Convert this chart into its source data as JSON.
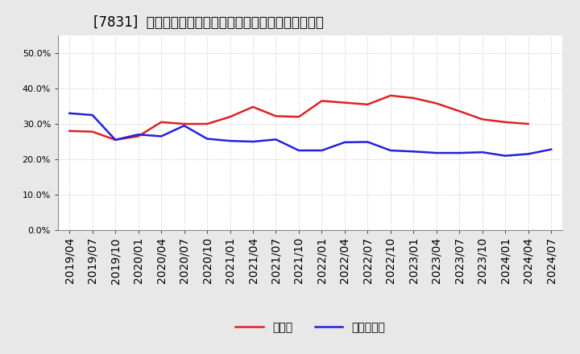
{
  "title": "[7831]  現顔金、有利子負債の総資産に対する比率の推移",
  "x_labels": [
    "2019/04",
    "2019/07",
    "2019/10",
    "2020/01",
    "2020/04",
    "2020/07",
    "2020/10",
    "2021/01",
    "2021/04",
    "2021/07",
    "2021/10",
    "2022/01",
    "2022/04",
    "2022/07",
    "2022/10",
    "2023/01",
    "2023/04",
    "2023/07",
    "2023/10",
    "2024/01",
    "2024/04",
    "2024/07"
  ],
  "genkin": [
    0.28,
    0.278,
    0.255,
    0.265,
    0.305,
    0.3,
    0.3,
    0.32,
    0.348,
    0.322,
    0.32,
    0.365,
    0.36,
    0.355,
    0.38,
    0.373,
    0.358,
    0.336,
    0.313,
    0.305,
    0.3,
    null
  ],
  "yurishifusai": [
    0.33,
    0.325,
    0.255,
    0.27,
    0.265,
    0.295,
    0.258,
    0.252,
    0.25,
    0.256,
    0.225,
    0.225,
    0.248,
    0.249,
    0.225,
    0.222,
    0.218,
    0.218,
    0.22,
    0.21,
    0.215,
    0.228
  ],
  "genkin_color": "#dd2222",
  "yurishifusai_color": "#2222dd",
  "plot_bg_color": "#ffffff",
  "fig_bg_color": "#e8e8e8",
  "grid_color": "#bbbbbb",
  "ylim": [
    0.0,
    0.55
  ],
  "yticks": [
    0.0,
    0.1,
    0.2,
    0.3,
    0.4,
    0.5
  ],
  "legend_genkin": "現顔金",
  "legend_yurishifusai": "有利子負債",
  "linewidth": 1.8,
  "title_fontsize": 12,
  "tick_fontsize": 8,
  "legend_fontsize": 10
}
